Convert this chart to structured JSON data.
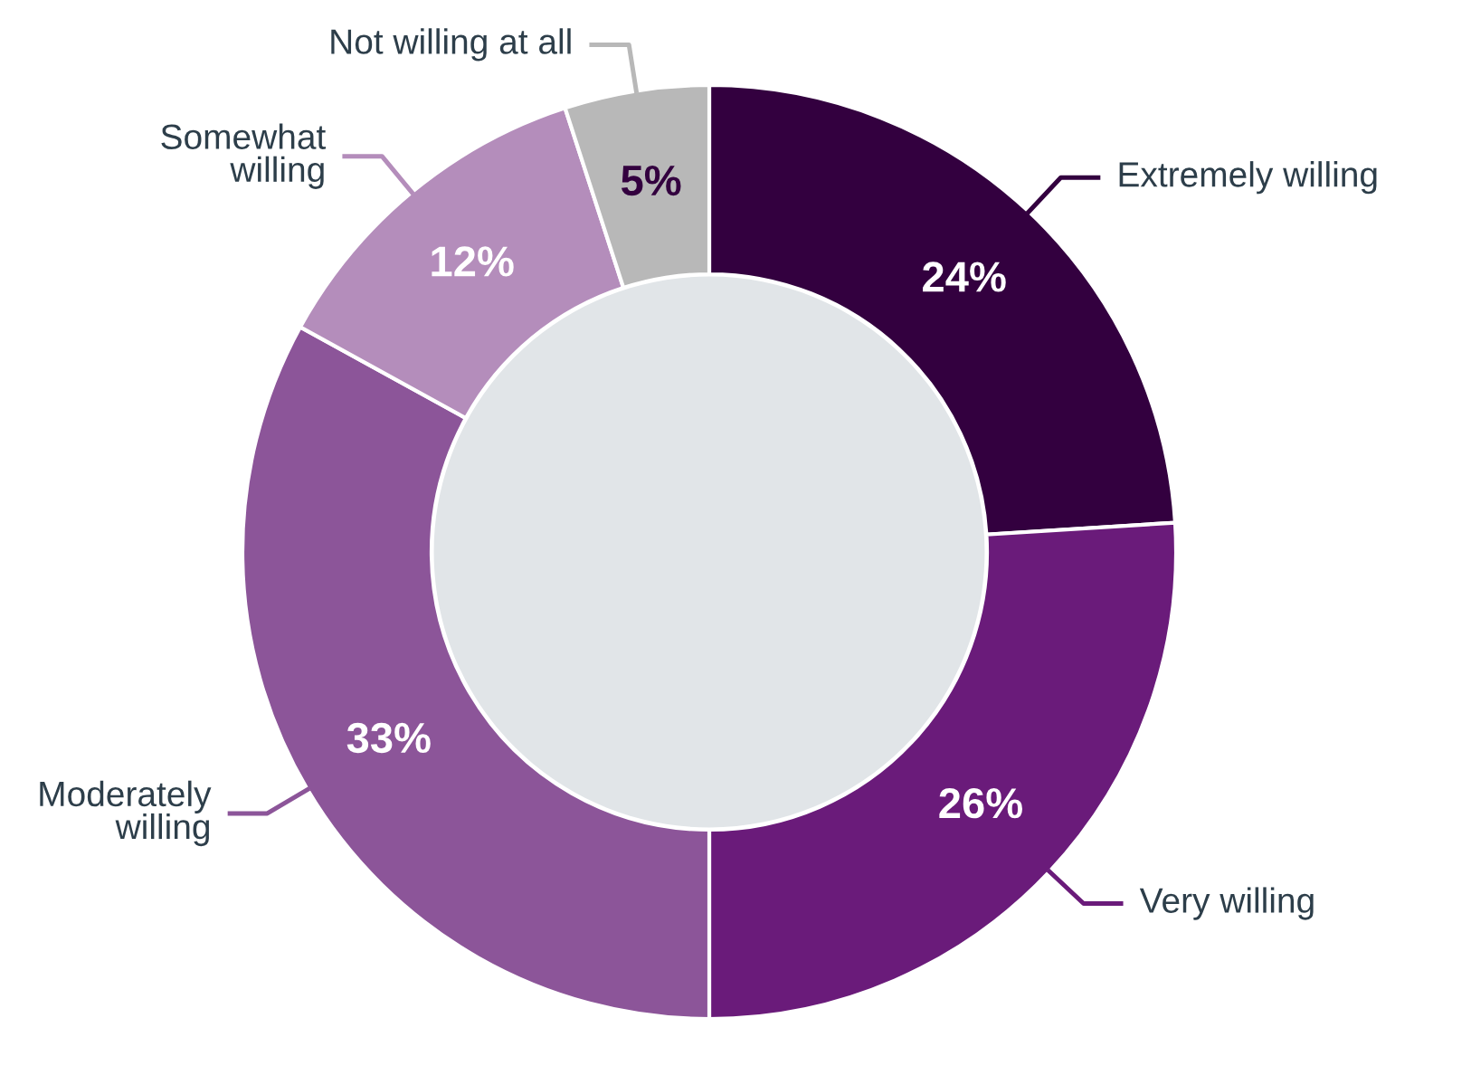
{
  "chart_data": {
    "type": "donut",
    "categories": [
      "Extremely willing",
      "Very willing",
      "Moderately\nwilling",
      "Somewhat\nwilling",
      "Not willing at all"
    ],
    "values": [
      24,
      26,
      33,
      12,
      5
    ],
    "colors": [
      "#33003f",
      "#6a1b7a",
      "#8c5599",
      "#b48dbb",
      "#b8b8b8"
    ],
    "value_labels": [
      "24%",
      "26%",
      "33%",
      "12%",
      "5%"
    ],
    "legend": false
  }
}
